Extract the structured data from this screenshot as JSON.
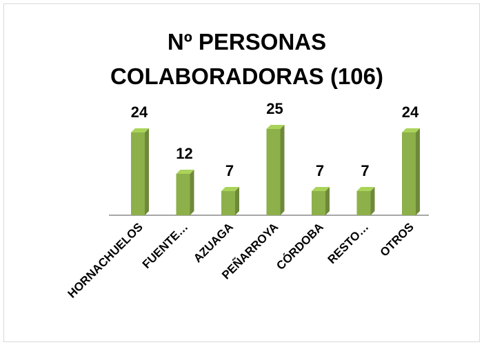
{
  "chart_data": {
    "type": "bar",
    "title": "Nº PERSONAS COLABORADORAS (106)",
    "categories": [
      "HORNACHUELOS",
      "FUENTE…",
      "AZUAGA",
      "PEÑARROYA",
      "CÓRDOBA",
      "RESTO…",
      "OTROS"
    ],
    "values": [
      24,
      12,
      7,
      25,
      7,
      7,
      24
    ],
    "color": "#8db04a"
  }
}
